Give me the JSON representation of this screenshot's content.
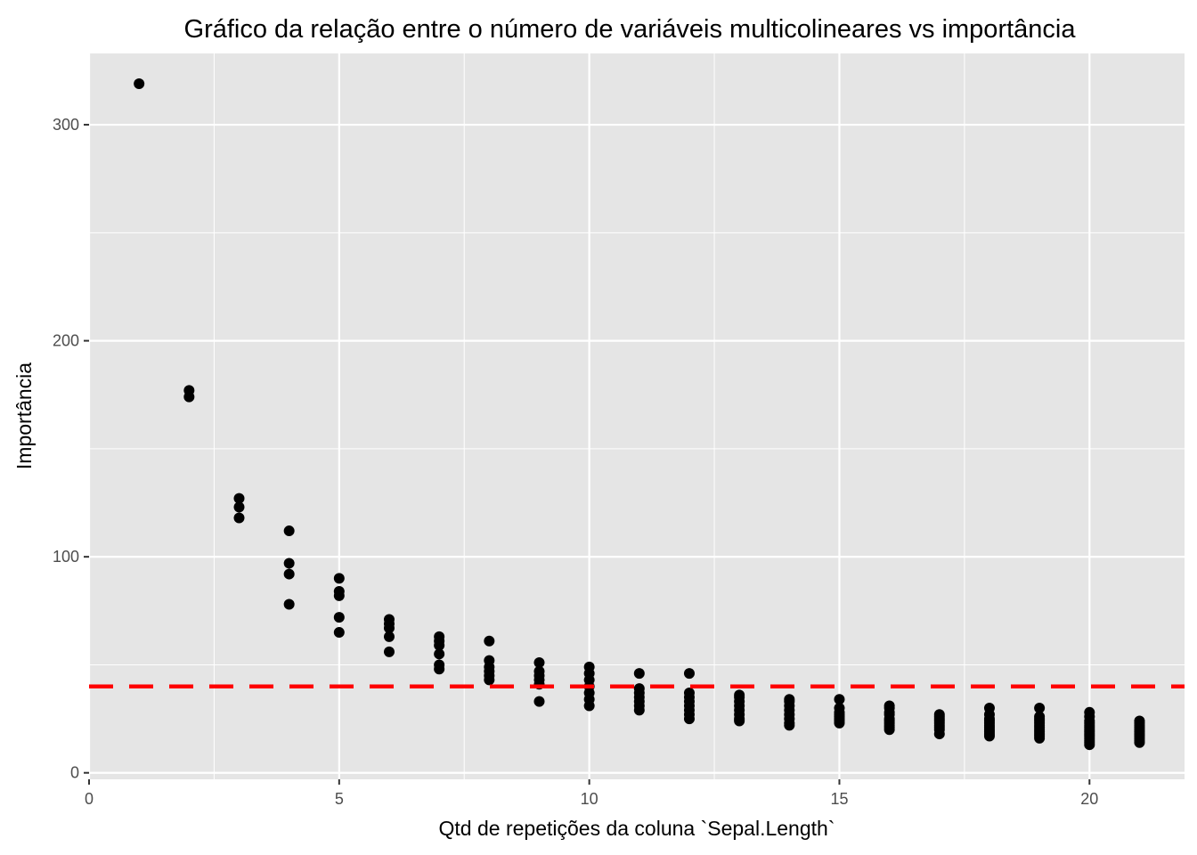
{
  "chart_data": {
    "type": "scatter",
    "title": "Gráfico da relação entre o número de variáveis multicolineares vs importância",
    "xlabel": "Qtd de repetições da coluna `Sepal.Length`",
    "ylabel": "Importância",
    "xlim": [
      0,
      21.9
    ],
    "ylim": [
      -3,
      333
    ],
    "x_ticks": [
      0,
      5,
      10,
      15,
      20
    ],
    "x_tick_labels": [
      "0",
      "5",
      "10",
      "15",
      "20"
    ],
    "y_ticks": [
      0,
      100,
      200,
      300
    ],
    "y_tick_labels": [
      "0",
      "100",
      "200",
      "300"
    ],
    "x_minor_grid": [
      2.5,
      7.5,
      12.5,
      17.5
    ],
    "y_minor_grid": [
      50,
      150,
      250
    ],
    "grid": true,
    "panel_color": "#e5e5e5",
    "grid_color": "#ffffff",
    "point_color": "#000000",
    "reference_line": {
      "y": 40,
      "style": "dashed",
      "color": "#ff0000"
    },
    "points": [
      {
        "x": 1,
        "values": [
          319
        ]
      },
      {
        "x": 2,
        "values": [
          177,
          174
        ]
      },
      {
        "x": 3,
        "values": [
          127,
          123,
          118
        ]
      },
      {
        "x": 4,
        "values": [
          112,
          97,
          92,
          78
        ]
      },
      {
        "x": 5,
        "values": [
          90,
          84,
          82,
          72,
          65
        ]
      },
      {
        "x": 6,
        "values": [
          71,
          69,
          67,
          63,
          56
        ]
      },
      {
        "x": 7,
        "values": [
          63,
          61,
          59,
          55,
          50,
          48
        ]
      },
      {
        "x": 8,
        "values": [
          61,
          52,
          49,
          47,
          45,
          43
        ]
      },
      {
        "x": 9,
        "values": [
          51,
          47,
          45,
          43,
          41,
          33
        ]
      },
      {
        "x": 10,
        "values": [
          49,
          46,
          43,
          40,
          37,
          34,
          31
        ]
      },
      {
        "x": 11,
        "values": [
          46,
          39,
          37,
          35,
          33,
          31,
          29
        ]
      },
      {
        "x": 12,
        "values": [
          46,
          37,
          35,
          33,
          31,
          29,
          27,
          25
        ]
      },
      {
        "x": 13,
        "values": [
          36,
          35,
          33,
          31,
          29,
          27,
          25,
          24
        ]
      },
      {
        "x": 14,
        "values": [
          34,
          33,
          31,
          29,
          27,
          25,
          23,
          22
        ]
      },
      {
        "x": 15,
        "values": [
          34,
          30,
          28,
          27,
          26,
          25,
          24,
          23
        ]
      },
      {
        "x": 16,
        "values": [
          31,
          30,
          28,
          27,
          25,
          24,
          23,
          22,
          21,
          20
        ]
      },
      {
        "x": 17,
        "values": [
          27,
          26,
          25,
          24,
          23,
          22,
          21,
          20,
          18
        ]
      },
      {
        "x": 18,
        "values": [
          30,
          27,
          25,
          24,
          23,
          22,
          21,
          20,
          19,
          18,
          17
        ]
      },
      {
        "x": 19,
        "values": [
          30,
          26,
          25,
          24,
          23,
          22,
          21,
          20,
          19,
          18,
          17,
          16
        ]
      },
      {
        "x": 20,
        "values": [
          28,
          26,
          24,
          23,
          22,
          21,
          20,
          19,
          18,
          17,
          16,
          15,
          14,
          13
        ]
      },
      {
        "x": 21,
        "values": [
          24,
          23,
          22,
          21,
          20,
          19,
          18,
          17,
          16,
          15,
          14
        ]
      }
    ]
  }
}
